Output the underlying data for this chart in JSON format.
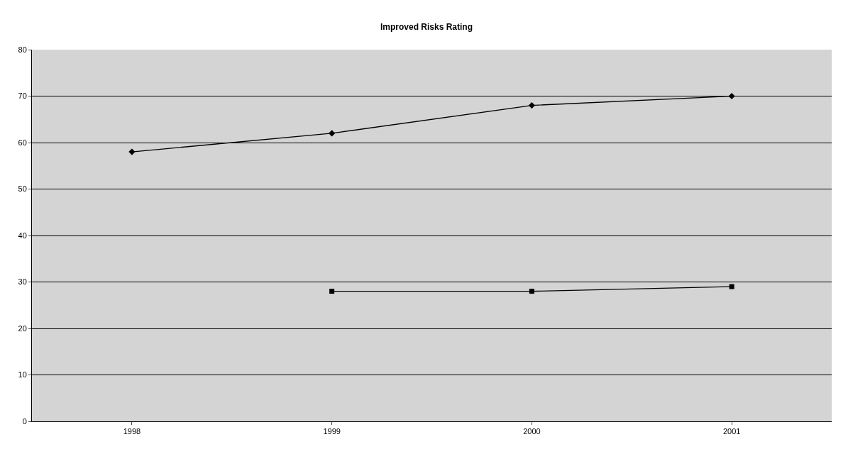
{
  "chart_data": {
    "type": "line",
    "title": "Improved Risks Rating",
    "categories": [
      "1998",
      "1999",
      "2000",
      "2001"
    ],
    "series": [
      {
        "color": "#000000",
        "marker": "diamond",
        "values": [
          58,
          62,
          68,
          70
        ]
      },
      {
        "color": "#000000",
        "marker": "square",
        "values": [
          null,
          28,
          28,
          29
        ]
      }
    ],
    "ylim": [
      0,
      80
    ],
    "yticks": [
      0,
      10,
      20,
      30,
      40,
      50,
      60,
      70,
      80
    ],
    "grid": "y",
    "line_style": "solid"
  }
}
